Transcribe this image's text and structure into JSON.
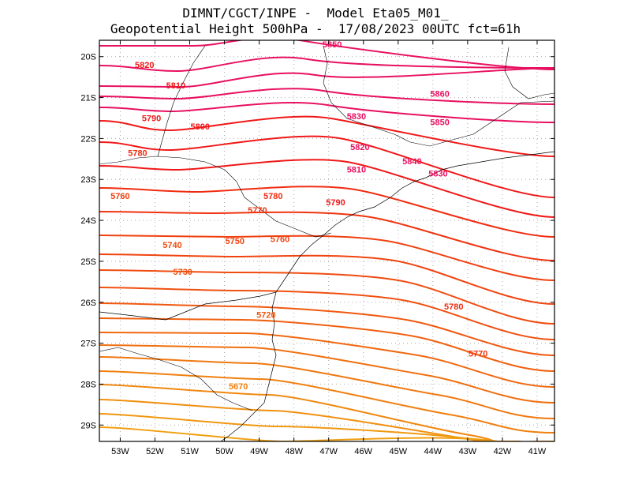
{
  "header": {
    "title_line1": "DIMNT/CGCT/INPE -  Model Eta05_M01_",
    "title_line2": "Geopotential Height 500hPa -  17/08/2023 00UTC fct=61h"
  },
  "axes": {
    "lat_labels": [
      "20S",
      "21S",
      "22S",
      "23S",
      "24S",
      "25S",
      "26S",
      "27S",
      "28S",
      "29S"
    ],
    "lon_labels": [
      "53W",
      "52W",
      "51W",
      "50W",
      "49W",
      "48W",
      "47W",
      "46W",
      "45W",
      "44W",
      "43W",
      "42W",
      "41W"
    ]
  },
  "chart_data": {
    "type": "contour-map",
    "variable": "Geopotential Height 500hPa",
    "lat_range": [
      -29.4,
      -19.6
    ],
    "lon_range": [
      -53.6,
      -40.5
    ],
    "contour_interval": 10,
    "contour_labels": [
      {
        "text": "5850",
        "value": 5850,
        "lon": -46.9,
        "lat": -19.7,
        "color": "#e81060"
      },
      {
        "text": "5820",
        "value": 5820,
        "lon": -52.3,
        "lat": -20.2,
        "color": "#f01818"
      },
      {
        "text": "5810",
        "value": 5810,
        "lon": -51.4,
        "lat": -20.7,
        "color": "#f01818"
      },
      {
        "text": "5790",
        "value": 5790,
        "lon": -52.1,
        "lat": -21.5,
        "color": "#f01818"
      },
      {
        "text": "5800",
        "value": 5800,
        "lon": -50.7,
        "lat": -21.7,
        "color": "#f01818"
      },
      {
        "text": "5780",
        "value": 5780,
        "lon": -52.5,
        "lat": -22.35,
        "color": "#f02c10"
      },
      {
        "text": "5860",
        "value": 5860,
        "lon": -43.8,
        "lat": -20.9,
        "color": "#e81060"
      },
      {
        "text": "5830",
        "value": 5830,
        "lon": -46.2,
        "lat": -21.45,
        "color": "#e81060"
      },
      {
        "text": "5850",
        "value": 5850,
        "lon": -43.8,
        "lat": -21.6,
        "color": "#e81060"
      },
      {
        "text": "5820",
        "value": 5820,
        "lon": -46.1,
        "lat": -22.2,
        "color": "#e81060"
      },
      {
        "text": "5840",
        "value": 5840,
        "lon": -44.6,
        "lat": -22.55,
        "color": "#e81060"
      },
      {
        "text": "5810",
        "value": 5810,
        "lon": -46.2,
        "lat": -22.75,
        "color": "#e81060"
      },
      {
        "text": "5830",
        "value": 5830,
        "lon": -43.85,
        "lat": -22.85,
        "color": "#e81060"
      },
      {
        "text": "5760",
        "value": 5760,
        "lon": -53.0,
        "lat": -23.4,
        "color": "#f04010"
      },
      {
        "text": "5780",
        "value": 5780,
        "lon": -48.6,
        "lat": -23.4,
        "color": "#f02c10"
      },
      {
        "text": "5790",
        "value": 5790,
        "lon": -46.8,
        "lat": -23.55,
        "color": "#f01818"
      },
      {
        "text": "5770",
        "value": 5770,
        "lon": -49.05,
        "lat": -23.75,
        "color": "#f03410"
      },
      {
        "text": "5740",
        "value": 5740,
        "lon": -51.5,
        "lat": -24.6,
        "color": "#f04c10"
      },
      {
        "text": "5750",
        "value": 5750,
        "lon": -49.7,
        "lat": -24.5,
        "color": "#f04410"
      },
      {
        "text": "5760",
        "value": 5760,
        "lon": -48.4,
        "lat": -24.45,
        "color": "#f04010"
      },
      {
        "text": "5730",
        "value": 5730,
        "lon": -51.2,
        "lat": -25.25,
        "color": "#f05010"
      },
      {
        "text": "5780",
        "value": 5780,
        "lon": -43.4,
        "lat": -26.1,
        "color": "#f02c10"
      },
      {
        "text": "5720",
        "value": 5720,
        "lon": -48.8,
        "lat": -26.3,
        "color": "#f05810"
      },
      {
        "text": "5770",
        "value": 5770,
        "lon": -42.7,
        "lat": -27.25,
        "color": "#f03410"
      },
      {
        "text": "5670",
        "value": 5670,
        "lon": -49.6,
        "lat": -28.05,
        "color": "#f08010"
      }
    ],
    "grid": "dotted"
  },
  "colors": {
    "frame": "#000000",
    "coast": "#000000",
    "grid": "#aaaaaa"
  }
}
